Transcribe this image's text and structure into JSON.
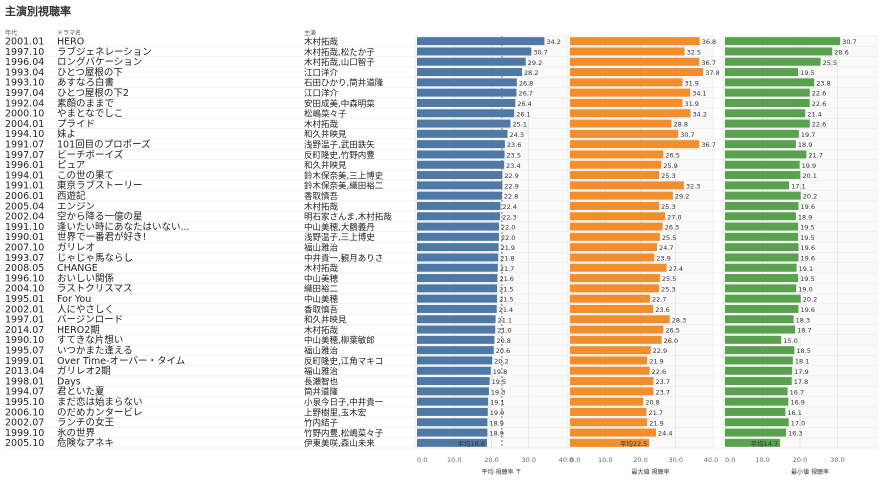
{
  "title": "主演別視聴率",
  "headers": {
    "year": "年代",
    "title": "ドラマ名",
    "cast": "主演"
  },
  "chart_data": {
    "type": "bar",
    "title": "主演別視聴率",
    "panels": [
      {
        "name": "平均 視聴率",
        "color": "#4e79a7",
        "xlim": [
          0,
          40
        ],
        "ticks": [
          "0.0",
          "10.0",
          "20.0",
          "30.0",
          "40.0"
        ],
        "axis_suffix": "〒",
        "reference_line": 22.8
      },
      {
        "name": "最大値 視聴率",
        "color": "#f28e2b",
        "xlim": [
          0,
          40
        ],
        "ticks": [
          "0.0",
          "10.0",
          "20.0",
          "30.0",
          "40.0"
        ]
      },
      {
        "name": "最小値 視聴率",
        "color": "#59a14f",
        "xlim": [
          0,
          40
        ],
        "ticks": [
          "0.0",
          "10.0",
          "20.0",
          "30.0"
        ]
      }
    ],
    "rows": [
      {
        "year": "2001.01",
        "title": "HERO",
        "cast": "木村拓哉",
        "avg": 34.2,
        "max": 36.8,
        "min": 30.7
      },
      {
        "year": "1997.10",
        "title": "ラブジェネレーション",
        "cast": "木村拓哉,松たか子",
        "avg": 30.7,
        "max": 32.5,
        "min": 28.6
      },
      {
        "year": "1996.04",
        "title": "ロングバケーション",
        "cast": "木村拓哉,山口智子",
        "avg": 29.2,
        "max": 36.7,
        "min": 25.5
      },
      {
        "year": "1993.04",
        "title": "ひとつ屋根の下",
        "cast": "江口洋介",
        "avg": 28.2,
        "max": 37.8,
        "min": 19.5
      },
      {
        "year": "1993.10",
        "title": "あすなろ白書",
        "cast": "石田ひかり,筒井道隆",
        "avg": 26.8,
        "max": 31.9,
        "min": 23.8
      },
      {
        "year": "1997.04",
        "title": "ひとつ屋根の下2",
        "cast": "江口洋介",
        "avg": 26.7,
        "max": 34.1,
        "min": 22.6
      },
      {
        "year": "1992.04",
        "title": "素顔のままで",
        "cast": "安田成美,中森明菜",
        "avg": 26.4,
        "max": 31.9,
        "min": 22.6
      },
      {
        "year": "2000.10",
        "title": "やまとなでしこ",
        "cast": "松嶋菜々子",
        "avg": 26.1,
        "max": 34.2,
        "min": 21.4
      },
      {
        "year": "2004.01",
        "title": "プライド",
        "cast": "木村拓哉",
        "avg": 25.1,
        "max": 28.8,
        "min": 22.6
      },
      {
        "year": "1994.10",
        "title": "妹よ",
        "cast": "和久井映見",
        "avg": 24.3,
        "max": 30.7,
        "min": 19.7
      },
      {
        "year": "1991.07",
        "title": "101回目のプロポーズ",
        "cast": "浅野温子,武田鉄矢",
        "avg": 23.6,
        "max": 36.7,
        "min": 18.9
      },
      {
        "year": "1997.07",
        "title": "ビーチボーイズ",
        "cast": "反町隆史,竹野内豊",
        "avg": 23.5,
        "max": 26.5,
        "min": 21.7
      },
      {
        "year": "1996.01",
        "title": "ピュア",
        "cast": "和久井映見",
        "avg": 23.4,
        "max": 25.9,
        "min": 19.9
      },
      {
        "year": "1994.01",
        "title": "この世の果て",
        "cast": "鈴木保奈美,三上博史",
        "avg": 22.9,
        "max": 25.3,
        "min": 20.1
      },
      {
        "year": "1991.01",
        "title": "東京ラブストーリー",
        "cast": "鈴木保奈美,織田裕二",
        "avg": 22.9,
        "max": 32.3,
        "min": 17.1
      },
      {
        "year": "2006.01",
        "title": "西遊記",
        "cast": "香取慎吾",
        "avg": 22.8,
        "max": 29.2,
        "min": 20.2
      },
      {
        "year": "2005.04",
        "title": "エンジン",
        "cast": "木村拓哉",
        "avg": 22.4,
        "max": 25.3,
        "min": 19.6
      },
      {
        "year": "2002.04",
        "title": "空から降る一億の星",
        "cast": "明石家さんま,木村拓哉",
        "avg": 22.3,
        "max": 27.0,
        "min": 18.9
      },
      {
        "year": "1991.10",
        "title": "逢いたい時にあなたはいない...",
        "cast": "中山美穂,大鶴義丹",
        "avg": 22.0,
        "max": 26.3,
        "min": 19.5
      },
      {
        "year": "1990.01",
        "title": "世界で一番君が好き!",
        "cast": "浅野温子,三上博史",
        "avg": 22.0,
        "max": 25.5,
        "min": 19.5
      },
      {
        "year": "2007.10",
        "title": "ガリレオ",
        "cast": "福山雅治",
        "avg": 21.9,
        "max": 24.7,
        "min": 19.6
      },
      {
        "year": "1993.07",
        "title": "じゃじゃ馬ならし",
        "cast": "中井貴一,観月ありさ",
        "avg": 21.8,
        "max": 23.9,
        "min": 19.6
      },
      {
        "year": "2008.05",
        "title": "CHANGE",
        "cast": "木村拓哉",
        "avg": 21.7,
        "max": 27.4,
        "min": 19.1
      },
      {
        "year": "1996.10",
        "title": "おいしい関係",
        "cast": "中山美穂",
        "avg": 21.6,
        "max": 25.5,
        "min": 19.5
      },
      {
        "year": "2004.10",
        "title": "ラストクリスマス",
        "cast": "織田裕二",
        "avg": 21.5,
        "max": 25.3,
        "min": 19.0
      },
      {
        "year": "1995.01",
        "title": "For You",
        "cast": "中山美穂",
        "avg": 21.5,
        "max": 22.7,
        "min": 20.2
      },
      {
        "year": "2002.01",
        "title": "人にやさしく",
        "cast": "香取慎吾",
        "avg": 21.4,
        "max": 23.6,
        "min": 19.6
      },
      {
        "year": "1997.01",
        "title": "バージンロード",
        "cast": "和久井映見",
        "avg": 21.1,
        "max": 28.3,
        "min": 18.3
      },
      {
        "year": "2014.07",
        "title": "HERO2期",
        "cast": "木村拓哉",
        "avg": 21.0,
        "max": 26.5,
        "min": 18.7
      },
      {
        "year": "1990.10",
        "title": "すてきな片想い",
        "cast": "中山美穂,柳葉敏郎",
        "avg": 20.8,
        "max": 26.0,
        "min": 15.0
      },
      {
        "year": "1995.07",
        "title": "いつかまた逢える",
        "cast": "福山雅治",
        "avg": 20.6,
        "max": 22.9,
        "min": 18.5
      },
      {
        "year": "1999.01",
        "title": "Over Time-オーバー・タイム",
        "cast": "反町隆史,江角マキコ",
        "avg": 20.2,
        "max": 21.9,
        "min": 18.1
      },
      {
        "year": "2013.04",
        "title": "ガリレオ2期",
        "cast": "福山雅治",
        "avg": 19.8,
        "max": 22.6,
        "min": 17.9
      },
      {
        "year": "1998.01",
        "title": "Days",
        "cast": "長瀬智也",
        "avg": 19.5,
        "max": 23.7,
        "min": 17.8
      },
      {
        "year": "1994.07",
        "title": "君といた夏",
        "cast": "筒井道隆",
        "avg": 19.3,
        "max": 23.7,
        "min": 16.7
      },
      {
        "year": "1995.10",
        "title": "まだ恋は始まらない",
        "cast": "小泉今日子,中井貴一",
        "avg": 19.1,
        "max": 20.8,
        "min": 16.9
      },
      {
        "year": "2006.10",
        "title": "のだめカンタービレ",
        "cast": "上野樹里,玉木宏",
        "avg": 19.0,
        "max": 21.7,
        "min": 16.1
      },
      {
        "year": "2002.07",
        "title": "ランチの女王",
        "cast": "竹内結子",
        "avg": 18.9,
        "max": 21.9,
        "min": 17.0
      },
      {
        "year": "1999.10",
        "title": "氷の世界",
        "cast": "竹野内豊,松嶋菜々子",
        "avg": 18.9,
        "max": 24.4,
        "min": 16.3
      },
      {
        "year": "2005.10",
        "title": "危険なアネキ",
        "cast": "伊東美咲,森山未来",
        "avg": 18.8,
        "max": 22.5,
        "min": 14.7
      }
    ],
    "label_overrides": {
      "39": {
        "avg": "平均18.8",
        "max": "平均22.5",
        "min": "平均14.7"
      }
    }
  }
}
